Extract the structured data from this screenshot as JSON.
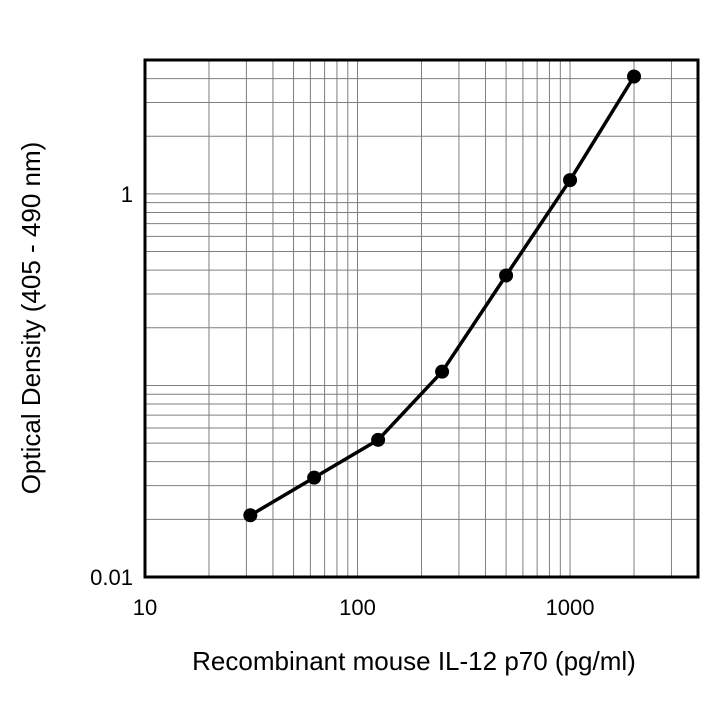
{
  "chart_data": {
    "type": "line",
    "title": "",
    "xlabel": "Recombinant mouse IL-12 p70 (pg/ml)",
    "ylabel": "Optical Density (405 - 490 nm)",
    "x_scale": "log",
    "y_scale": "log",
    "xlim": [
      10,
      4000
    ],
    "ylim": [
      0.01,
      5
    ],
    "x_ticks": [
      {
        "value": 10,
        "label": "10"
      },
      {
        "value": 100,
        "label": "100"
      },
      {
        "value": 1000,
        "label": "1000"
      }
    ],
    "y_ticks": [
      {
        "value": 0.01,
        "label": "0.01"
      },
      {
        "value": 1,
        "label": "1"
      }
    ],
    "grid": true,
    "series": [
      {
        "x": [
          31.3,
          62.5,
          125,
          250,
          500,
          1000,
          2000
        ],
        "y": [
          0.021,
          0.033,
          0.052,
          0.118,
          0.375,
          1.18,
          4.1
        ]
      }
    ],
    "colors": {
      "line": "#000000",
      "grid": "#7f7f7f",
      "frame": "#000000"
    }
  }
}
